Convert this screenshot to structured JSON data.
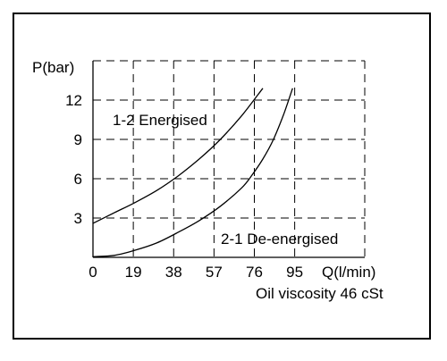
{
  "chart_data": {
    "type": "line",
    "xlabel": "Q(l/min)",
    "ylabel": "P(bar)",
    "x_ticks": [
      0,
      19,
      38,
      57,
      76,
      95
    ],
    "y_ticks": [
      3,
      6,
      9,
      12
    ],
    "xlim": [
      0,
      128
    ],
    "ylim": [
      0,
      15
    ],
    "grid": true,
    "note": "Oil viscosity 46 cSt",
    "series": [
      {
        "name": "1-2 Energised",
        "x": [
          0,
          10,
          20,
          30,
          40,
          50,
          60,
          70,
          80
        ],
        "y": [
          2.6,
          3.4,
          4.2,
          5.1,
          6.2,
          7.5,
          9.0,
          10.8,
          12.9
        ]
      },
      {
        "name": "2-1 De-energised",
        "x": [
          0,
          10,
          20,
          30,
          40,
          50,
          60,
          70,
          75,
          80,
          85,
          90,
          94
        ],
        "y": [
          0.05,
          0.15,
          0.55,
          1.1,
          1.9,
          2.8,
          3.9,
          5.3,
          6.3,
          7.5,
          9.0,
          11.0,
          12.9
        ]
      }
    ]
  }
}
